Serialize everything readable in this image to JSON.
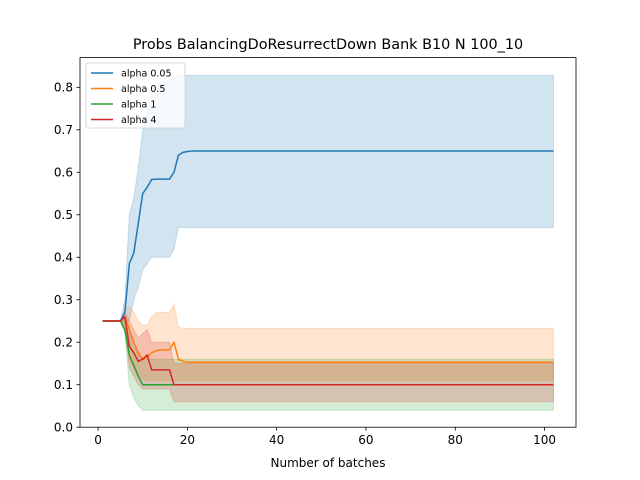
{
  "chart_data": {
    "type": "line",
    "title": "Probs BalancingDoResurrectDown Bank B10 N 100_10",
    "xlabel": "Number of batches",
    "ylabel": "",
    "xlim": [
      -4.05,
      107.05
    ],
    "ylim": [
      0.0,
      0.87
    ],
    "xticks": [
      0,
      20,
      40,
      60,
      80,
      100
    ],
    "yticks": [
      0.0,
      0.1,
      0.2,
      0.3,
      0.4,
      0.5,
      0.6,
      0.7,
      0.8
    ],
    "grid": false,
    "legend_position": "top-left",
    "x": [
      1,
      2,
      3,
      4,
      5,
      6,
      7,
      8,
      9,
      10,
      11,
      12,
      13,
      14,
      15,
      16,
      17,
      18,
      19,
      20,
      21,
      22,
      102
    ],
    "series": [
      {
        "name": "alpha 0.05",
        "color": "#1f77b4",
        "values": [
          0.25,
          0.25,
          0.25,
          0.25,
          0.25,
          0.27,
          0.385,
          0.41,
          0.48,
          0.55,
          0.565,
          0.583,
          0.584,
          0.584,
          0.584,
          0.584,
          0.6,
          0.64,
          0.647,
          0.649,
          0.65,
          0.65,
          0.65
        ],
        "lower": [
          0.25,
          0.25,
          0.25,
          0.25,
          0.25,
          0.25,
          0.25,
          0.3,
          0.33,
          0.37,
          0.385,
          0.4,
          0.4,
          0.4,
          0.4,
          0.4,
          0.42,
          0.47,
          0.47,
          0.47,
          0.47,
          0.47,
          0.47
        ],
        "upper": [
          0.25,
          0.25,
          0.25,
          0.25,
          0.25,
          0.3,
          0.5,
          0.54,
          0.61,
          0.7,
          0.74,
          0.78,
          0.8,
          0.81,
          0.81,
          0.82,
          0.823,
          0.828,
          0.828,
          0.828,
          0.828,
          0.828,
          0.828
        ]
      },
      {
        "name": "alpha 0.5",
        "color": "#ff7f0e",
        "values": [
          0.25,
          0.25,
          0.25,
          0.25,
          0.25,
          0.26,
          0.23,
          0.2,
          0.175,
          0.16,
          0.165,
          0.175,
          0.18,
          0.182,
          0.182,
          0.182,
          0.2,
          0.16,
          0.155,
          0.153,
          0.153,
          0.153,
          0.153
        ],
        "lower": [
          0.25,
          0.25,
          0.25,
          0.25,
          0.25,
          0.23,
          0.16,
          0.14,
          0.12,
          0.115,
          0.11,
          0.11,
          0.11,
          0.11,
          0.11,
          0.11,
          0.11,
          0.11,
          0.11,
          0.11,
          0.11,
          0.11,
          0.11
        ],
        "upper": [
          0.25,
          0.25,
          0.25,
          0.25,
          0.25,
          0.28,
          0.285,
          0.27,
          0.25,
          0.24,
          0.24,
          0.26,
          0.27,
          0.27,
          0.27,
          0.27,
          0.29,
          0.235,
          0.233,
          0.233,
          0.233,
          0.233,
          0.233
        ]
      },
      {
        "name": "alpha 1",
        "color": "#2ca02c",
        "values": [
          0.25,
          0.25,
          0.25,
          0.25,
          0.25,
          0.23,
          0.17,
          0.145,
          0.12,
          0.1,
          0.1,
          0.1,
          0.1,
          0.1,
          0.1,
          0.1,
          0.1,
          0.1,
          0.1,
          0.1,
          0.1,
          0.1,
          0.1
        ],
        "lower": [
          0.25,
          0.25,
          0.25,
          0.25,
          0.25,
          0.22,
          0.1,
          0.07,
          0.05,
          0.04,
          0.04,
          0.04,
          0.04,
          0.04,
          0.04,
          0.04,
          0.04,
          0.04,
          0.04,
          0.04,
          0.04,
          0.04,
          0.04
        ],
        "upper": [
          0.25,
          0.25,
          0.25,
          0.25,
          0.25,
          0.25,
          0.22,
          0.2,
          0.17,
          0.16,
          0.16,
          0.16,
          0.16,
          0.16,
          0.16,
          0.16,
          0.16,
          0.16,
          0.16,
          0.16,
          0.16,
          0.16,
          0.16
        ]
      },
      {
        "name": "alpha 4",
        "color": "#d62728",
        "values": [
          0.25,
          0.25,
          0.25,
          0.25,
          0.25,
          0.26,
          0.19,
          0.175,
          0.155,
          0.16,
          0.17,
          0.135,
          0.135,
          0.135,
          0.135,
          0.135,
          0.1,
          0.1,
          0.1,
          0.1,
          0.1,
          0.1,
          0.1
        ],
        "lower": [
          0.25,
          0.25,
          0.25,
          0.25,
          0.25,
          0.24,
          0.14,
          0.12,
          0.1,
          0.09,
          0.09,
          0.09,
          0.09,
          0.09,
          0.09,
          0.09,
          0.06,
          0.06,
          0.06,
          0.06,
          0.06,
          0.06,
          0.06
        ],
        "upper": [
          0.25,
          0.25,
          0.25,
          0.25,
          0.25,
          0.27,
          0.25,
          0.23,
          0.21,
          0.22,
          0.23,
          0.2,
          0.2,
          0.2,
          0.2,
          0.2,
          0.15,
          0.15,
          0.15,
          0.15,
          0.15,
          0.15,
          0.15
        ]
      }
    ]
  }
}
